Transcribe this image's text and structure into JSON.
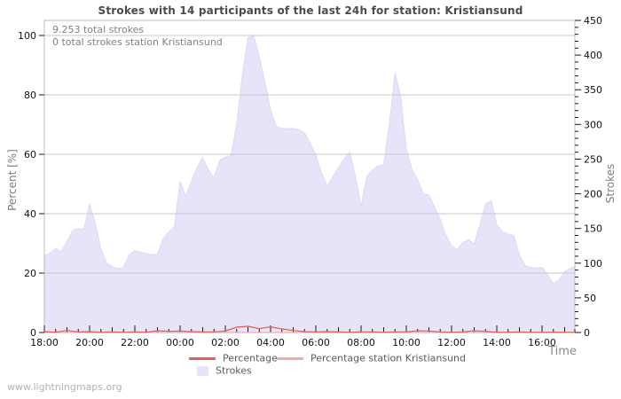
{
  "page": {
    "watermark": "www.lightningmaps.org"
  },
  "chart_data": {
    "type": "area",
    "title": "Strokes with 14 participants of the last 24h for station: Kristiansund",
    "annotations": [
      "9.253 total strokes",
      "0 total strokes station Kristiansund"
    ],
    "x_axis": {
      "label": "Time",
      "start": "18:00",
      "span_hours": 23.5,
      "tick_labels": [
        "18:00",
        "20:00",
        "22:00",
        "00:00",
        "02:00",
        "04:00",
        "06:00",
        "08:00",
        "10:00",
        "12:00",
        "14:00",
        "16:00"
      ],
      "label_interval_hours": 2,
      "minor_tick_minutes": 30
    },
    "y_left": {
      "label": "Percent  [%]",
      "ticks": [
        0,
        20,
        40,
        60,
        80,
        100
      ],
      "range": [
        0,
        100
      ]
    },
    "y_right": {
      "label": "Strokes",
      "ticks": [
        0,
        50,
        100,
        150,
        200,
        250,
        300,
        350,
        400,
        450
      ],
      "minor_step": 10,
      "range": [
        0,
        450
      ]
    },
    "grid": {
      "horizontal_at_percent": [
        20,
        40,
        60,
        80,
        100
      ],
      "color": "#c9c9c9",
      "border_color": "#bcbcbc"
    },
    "series": [
      {
        "name": "Percentage",
        "type": "line",
        "axis": "left",
        "color": "#e05f5c",
        "interval_minutes": 30,
        "values": [
          0.3,
          0.1,
          0.7,
          0.2,
          0.3,
          0.1,
          0.2,
          0.1,
          0.2,
          0.1,
          0.6,
          0.4,
          0.5,
          0.3,
          0.2,
          0.2,
          0.5,
          1.8,
          2.1,
          1.3,
          1.9,
          1.2,
          0.7,
          0.3,
          0.2,
          0.3,
          0.2,
          0.1,
          0.2,
          0.2,
          0.1,
          0.2,
          0.2,
          0.6,
          0.5,
          0.2,
          0.1,
          0.2,
          0.6,
          0.4,
          0.1,
          0.1,
          0.2,
          0.1,
          0.1,
          0.1,
          0.1,
          0.1
        ]
      },
      {
        "name": "Percentage station Kristiansund",
        "type": "line",
        "axis": "left",
        "color": "#f2aba4",
        "constant_value": 0
      },
      {
        "name": "Strokes",
        "type": "area",
        "axis": "right",
        "fill": "#e6e4f9",
        "edge": "#dcd9f5",
        "interval_minutes": 15,
        "values": [
          111,
          114,
          121,
          117,
          131,
          147,
          150,
          149,
          185,
          158,
          120,
          100,
          95,
          92,
          94,
          112,
          118,
          116,
          114,
          112,
          113,
          135,
          145,
          152,
          218,
          196,
          218,
          238,
          252,
          235,
          223,
          248,
          253,
          255,
          300,
          370,
          425,
          428,
          397,
          362,
          320,
          297,
          294,
          294,
          294,
          292,
          288,
          273,
          256,
          230,
          211,
          224,
          238,
          250,
          260,
          225,
          182,
          225,
          234,
          240,
          242,
          300,
          374,
          340,
          265,
          235,
          220,
          200,
          198,
          180,
          163,
          140,
          125,
          119,
          130,
          134,
          128,
          155,
          185,
          190,
          155,
          145,
          142,
          140,
          112,
          96,
          94,
          93,
          94,
          83,
          70,
          76,
          88,
          93,
          95
        ]
      }
    ]
  }
}
